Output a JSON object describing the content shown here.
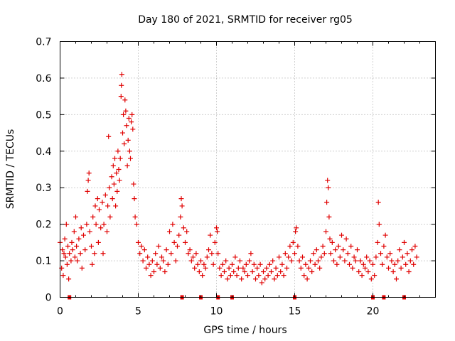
{
  "chart_data": {
    "type": "scatter",
    "title": "Day 180 of 2021, SRMTID for receiver rg05",
    "xlabel": "GPS time / hours",
    "ylabel": "SRMTID / TECUs",
    "xlim": [
      0,
      24
    ],
    "ylim": [
      0,
      0.7
    ],
    "xticks": [
      0,
      5,
      10,
      15,
      20
    ],
    "xtick_labels": [
      "0",
      "5",
      "10",
      "15",
      "20"
    ],
    "yticks": [
      0,
      0.1,
      0.2,
      0.3,
      0.4,
      0.5,
      0.6,
      0.7
    ],
    "ytick_labels": [
      "0",
      "0.1",
      "0.2",
      "0.3",
      "0.4",
      "0.5",
      "0.6",
      "0.7"
    ],
    "grid": true,
    "marker": "+",
    "color": "#e00000",
    "series": [
      {
        "name": "SRMTID",
        "points": [
          [
            0.0,
            0.15
          ],
          [
            0.1,
            0.08
          ],
          [
            0.15,
            0.13
          ],
          [
            0.2,
            0.06
          ],
          [
            0.25,
            0.12
          ],
          [
            0.3,
            0.16
          ],
          [
            0.35,
            0.11
          ],
          [
            0.4,
            0.2
          ],
          [
            0.45,
            0.09
          ],
          [
            0.5,
            0.14
          ],
          [
            0.55,
            0.05
          ],
          [
            0.6,
            0.12
          ],
          [
            0.7,
            0.1
          ],
          [
            0.75,
            0.15
          ],
          [
            0.8,
            0.13
          ],
          [
            0.9,
            0.18
          ],
          [
            0.95,
            0.11
          ],
          [
            1.0,
            0.22
          ],
          [
            1.05,
            0.14
          ],
          [
            1.1,
            0.1
          ],
          [
            1.2,
            0.16
          ],
          [
            1.3,
            0.12
          ],
          [
            1.35,
            0.19
          ],
          [
            1.4,
            0.08
          ],
          [
            1.5,
            0.17
          ],
          [
            1.6,
            0.13
          ],
          [
            1.7,
            0.2
          ],
          [
            1.75,
            0.29
          ],
          [
            1.8,
            0.32
          ],
          [
            1.85,
            0.34
          ],
          [
            1.9,
            0.18
          ],
          [
            2.0,
            0.14
          ],
          [
            2.05,
            0.09
          ],
          [
            2.1,
            0.22
          ],
          [
            2.2,
            0.12
          ],
          [
            2.25,
            0.25
          ],
          [
            2.3,
            0.2
          ],
          [
            2.4,
            0.27
          ],
          [
            2.45,
            0.15
          ],
          [
            2.5,
            0.24
          ],
          [
            2.6,
            0.19
          ],
          [
            2.7,
            0.26
          ],
          [
            2.75,
            0.12
          ],
          [
            2.8,
            0.2
          ],
          [
            2.9,
            0.28
          ],
          [
            3.0,
            0.18
          ],
          [
            3.05,
            0.25
          ],
          [
            3.1,
            0.44
          ],
          [
            3.15,
            0.3
          ],
          [
            3.2,
            0.22
          ],
          [
            3.3,
            0.33
          ],
          [
            3.35,
            0.27
          ],
          [
            3.4,
            0.36
          ],
          [
            3.45,
            0.31
          ],
          [
            3.5,
            0.38
          ],
          [
            3.55,
            0.25
          ],
          [
            3.6,
            0.34
          ],
          [
            3.65,
            0.29
          ],
          [
            3.7,
            0.4
          ],
          [
            3.75,
            0.35
          ],
          [
            3.8,
            0.32
          ],
          [
            3.85,
            0.38
          ],
          [
            3.9,
            0.55
          ],
          [
            3.92,
            0.58
          ],
          [
            3.95,
            0.61
          ],
          [
            4.0,
            0.45
          ],
          [
            4.05,
            0.5
          ],
          [
            4.1,
            0.42
          ],
          [
            4.15,
            0.54
          ],
          [
            4.2,
            0.51
          ],
          [
            4.25,
            0.47
          ],
          [
            4.3,
            0.36
          ],
          [
            4.35,
            0.43
          ],
          [
            4.4,
            0.49
          ],
          [
            4.45,
            0.4
          ],
          [
            4.5,
            0.38
          ],
          [
            4.55,
            0.48
          ],
          [
            4.6,
            0.5
          ],
          [
            4.65,
            0.46
          ],
          [
            4.7,
            0.31
          ],
          [
            4.75,
            0.27
          ],
          [
            4.8,
            0.22
          ],
          [
            4.9,
            0.2
          ],
          [
            5.0,
            0.15
          ],
          [
            5.1,
            0.12
          ],
          [
            5.2,
            0.14
          ],
          [
            5.3,
            0.1
          ],
          [
            5.4,
            0.13
          ],
          [
            5.5,
            0.08
          ],
          [
            5.6,
            0.11
          ],
          [
            5.7,
            0.09
          ],
          [
            5.8,
            0.06
          ],
          [
            5.9,
            0.1
          ],
          [
            6.0,
            0.07
          ],
          [
            6.1,
            0.12
          ],
          [
            6.2,
            0.09
          ],
          [
            6.3,
            0.14
          ],
          [
            6.4,
            0.08
          ],
          [
            6.5,
            0.11
          ],
          [
            6.6,
            0.1
          ],
          [
            6.7,
            0.07
          ],
          [
            6.8,
            0.13
          ],
          [
            6.9,
            0.09
          ],
          [
            7.0,
            0.18
          ],
          [
            7.1,
            0.12
          ],
          [
            7.2,
            0.2
          ],
          [
            7.3,
            0.15
          ],
          [
            7.4,
            0.1
          ],
          [
            7.5,
            0.14
          ],
          [
            7.6,
            0.17
          ],
          [
            7.7,
            0.22
          ],
          [
            7.75,
            0.27
          ],
          [
            7.8,
            0.25
          ],
          [
            7.9,
            0.19
          ],
          [
            8.0,
            0.15
          ],
          [
            8.1,
            0.18
          ],
          [
            8.2,
            0.12
          ],
          [
            8.3,
            0.13
          ],
          [
            8.4,
            0.1
          ],
          [
            8.5,
            0.11
          ],
          [
            8.6,
            0.08
          ],
          [
            8.7,
            0.12
          ],
          [
            8.8,
            0.09
          ],
          [
            8.9,
            0.07
          ],
          [
            9.0,
            0.1
          ],
          [
            9.1,
            0.06
          ],
          [
            9.2,
            0.09
          ],
          [
            9.3,
            0.08
          ],
          [
            9.4,
            0.11
          ],
          [
            9.5,
            0.13
          ],
          [
            9.6,
            0.17
          ],
          [
            9.7,
            0.12
          ],
          [
            9.8,
            0.09
          ],
          [
            9.9,
            0.15
          ],
          [
            10.0,
            0.19
          ],
          [
            10.05,
            0.18
          ],
          [
            10.1,
            0.12
          ],
          [
            10.2,
            0.08
          ],
          [
            10.3,
            0.06
          ],
          [
            10.4,
            0.09
          ],
          [
            10.5,
            0.07
          ],
          [
            10.6,
            0.1
          ],
          [
            10.7,
            0.05
          ],
          [
            10.8,
            0.08
          ],
          [
            10.9,
            0.06
          ],
          [
            11.0,
            0.09
          ],
          [
            11.1,
            0.07
          ],
          [
            11.2,
            0.11
          ],
          [
            11.3,
            0.06
          ],
          [
            11.4,
            0.08
          ],
          [
            11.5,
            0.1
          ],
          [
            11.6,
            0.05
          ],
          [
            11.7,
            0.08
          ],
          [
            11.8,
            0.07
          ],
          [
            11.9,
            0.09
          ],
          [
            12.0,
            0.06
          ],
          [
            12.1,
            0.1
          ],
          [
            12.2,
            0.12
          ],
          [
            12.3,
            0.07
          ],
          [
            12.4,
            0.09
          ],
          [
            12.5,
            0.05
          ],
          [
            12.6,
            0.08
          ],
          [
            12.7,
            0.06
          ],
          [
            12.8,
            0.09
          ],
          [
            12.9,
            0.04
          ],
          [
            13.0,
            0.07
          ],
          [
            13.1,
            0.05
          ],
          [
            13.2,
            0.08
          ],
          [
            13.3,
            0.06
          ],
          [
            13.4,
            0.09
          ],
          [
            13.5,
            0.07
          ],
          [
            13.6,
            0.1
          ],
          [
            13.7,
            0.05
          ],
          [
            13.8,
            0.08
          ],
          [
            13.9,
            0.06
          ],
          [
            14.0,
            0.11
          ],
          [
            14.1,
            0.07
          ],
          [
            14.2,
            0.09
          ],
          [
            14.3,
            0.06
          ],
          [
            14.4,
            0.12
          ],
          [
            14.5,
            0.08
          ],
          [
            14.6,
            0.11
          ],
          [
            14.7,
            0.14
          ],
          [
            14.8,
            0.1
          ],
          [
            14.9,
            0.15
          ],
          [
            15.0,
            0.12
          ],
          [
            15.05,
            0.18
          ],
          [
            15.1,
            0.19
          ],
          [
            15.2,
            0.14
          ],
          [
            15.3,
            0.1
          ],
          [
            15.4,
            0.08
          ],
          [
            15.5,
            0.11
          ],
          [
            15.6,
            0.06
          ],
          [
            15.7,
            0.09
          ],
          [
            15.8,
            0.05
          ],
          [
            15.9,
            0.08
          ],
          [
            16.0,
            0.1
          ],
          [
            16.1,
            0.07
          ],
          [
            16.2,
            0.12
          ],
          [
            16.3,
            0.09
          ],
          [
            16.4,
            0.13
          ],
          [
            16.5,
            0.1
          ],
          [
            16.6,
            0.08
          ],
          [
            16.7,
            0.11
          ],
          [
            16.8,
            0.14
          ],
          [
            16.9,
            0.12
          ],
          [
            17.0,
            0.18
          ],
          [
            17.05,
            0.26
          ],
          [
            17.1,
            0.32
          ],
          [
            17.15,
            0.3
          ],
          [
            17.2,
            0.22
          ],
          [
            17.25,
            0.16
          ],
          [
            17.3,
            0.12
          ],
          [
            17.4,
            0.15
          ],
          [
            17.5,
            0.1
          ],
          [
            17.6,
            0.13
          ],
          [
            17.7,
            0.09
          ],
          [
            17.8,
            0.14
          ],
          [
            17.9,
            0.11
          ],
          [
            18.0,
            0.17
          ],
          [
            18.1,
            0.13
          ],
          [
            18.2,
            0.1
          ],
          [
            18.3,
            0.16
          ],
          [
            18.4,
            0.12
          ],
          [
            18.5,
            0.09
          ],
          [
            18.6,
            0.14
          ],
          [
            18.7,
            0.08
          ],
          [
            18.8,
            0.11
          ],
          [
            18.9,
            0.1
          ],
          [
            19.0,
            0.13
          ],
          [
            19.1,
            0.07
          ],
          [
            19.2,
            0.1
          ],
          [
            19.3,
            0.06
          ],
          [
            19.4,
            0.09
          ],
          [
            19.5,
            0.08
          ],
          [
            19.6,
            0.11
          ],
          [
            19.7,
            0.07
          ],
          [
            19.8,
            0.1
          ],
          [
            19.9,
            0.05
          ],
          [
            20.0,
            0.09
          ],
          [
            20.1,
            0.06
          ],
          [
            20.2,
            0.11
          ],
          [
            20.3,
            0.15
          ],
          [
            20.35,
            0.26
          ],
          [
            20.4,
            0.2
          ],
          [
            20.5,
            0.12
          ],
          [
            20.6,
            0.09
          ],
          [
            20.7,
            0.14
          ],
          [
            20.8,
            0.17
          ],
          [
            20.9,
            0.11
          ],
          [
            21.0,
            0.08
          ],
          [
            21.1,
            0.12
          ],
          [
            21.2,
            0.1
          ],
          [
            21.3,
            0.07
          ],
          [
            21.4,
            0.09
          ],
          [
            21.5,
            0.05
          ],
          [
            21.6,
            0.1
          ],
          [
            21.7,
            0.13
          ],
          [
            21.8,
            0.08
          ],
          [
            21.9,
            0.11
          ],
          [
            22.0,
            0.15
          ],
          [
            22.1,
            0.09
          ],
          [
            22.2,
            0.12
          ],
          [
            22.3,
            0.07
          ],
          [
            22.4,
            0.1
          ],
          [
            22.5,
            0.13
          ],
          [
            22.6,
            0.09
          ],
          [
            22.7,
            0.14
          ],
          [
            22.8,
            0.11
          ]
        ]
      }
    ],
    "axis_markers_x": [
      0.6,
      7.8,
      9.0,
      10.1,
      11.0,
      15.0,
      20.0,
      20.7,
      22.0
    ]
  }
}
